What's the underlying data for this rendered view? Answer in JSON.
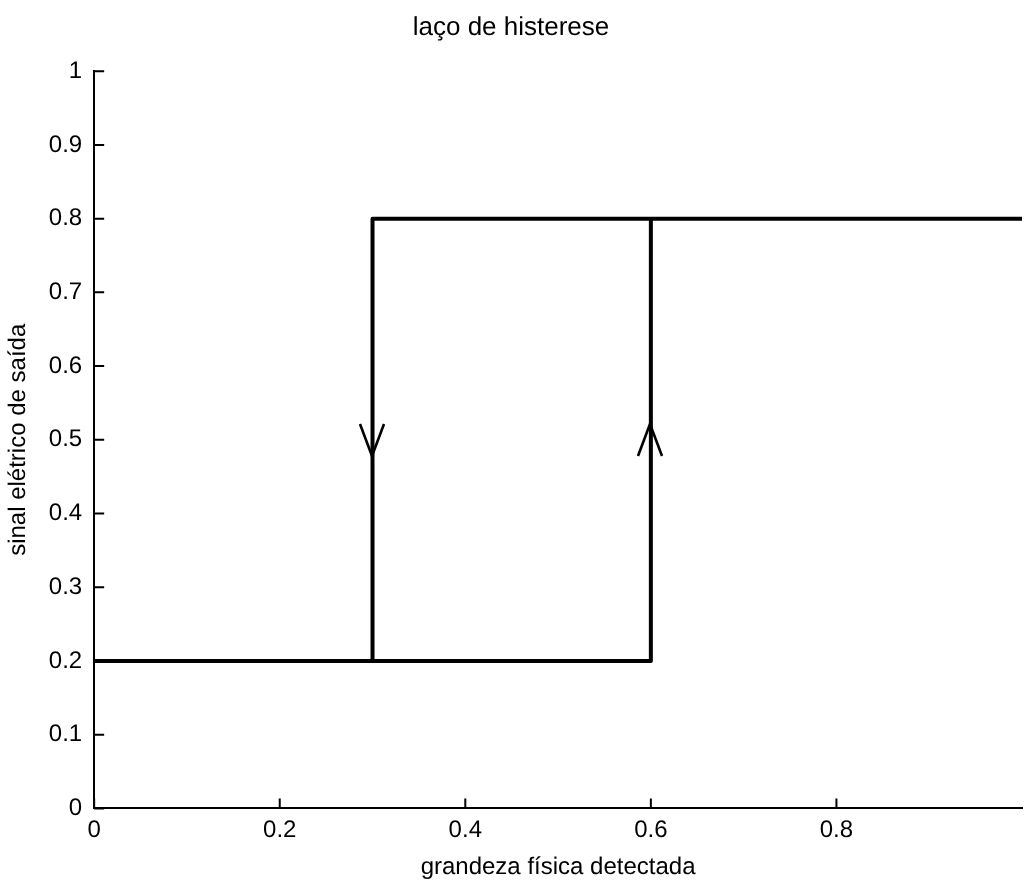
{
  "chart_data": {
    "type": "line",
    "title": "laço de histerese",
    "xlabel": "grandeza física detectada",
    "ylabel": "sinal elétrico de saída",
    "x": [
      0,
      0.6,
      0.6,
      1,
      0.3,
      0.3
    ],
    "series": [
      {
        "color": "#000000",
        "values": [
          0.2,
          0.2,
          0.8,
          0.8,
          0.8,
          0.2
        ]
      }
    ],
    "xlim": [
      0,
      1
    ],
    "xticks": [
      0,
      0.2,
      0.4,
      0.6,
      0.8
    ],
    "ylim": [
      0,
      1
    ],
    "yticks": [
      0,
      0.1,
      0.2,
      0.3,
      0.4,
      0.5,
      0.6,
      0.7,
      0.8,
      0.9,
      1
    ],
    "grid": false,
    "legend": false,
    "marker": "none",
    "line_style": "solid"
  }
}
